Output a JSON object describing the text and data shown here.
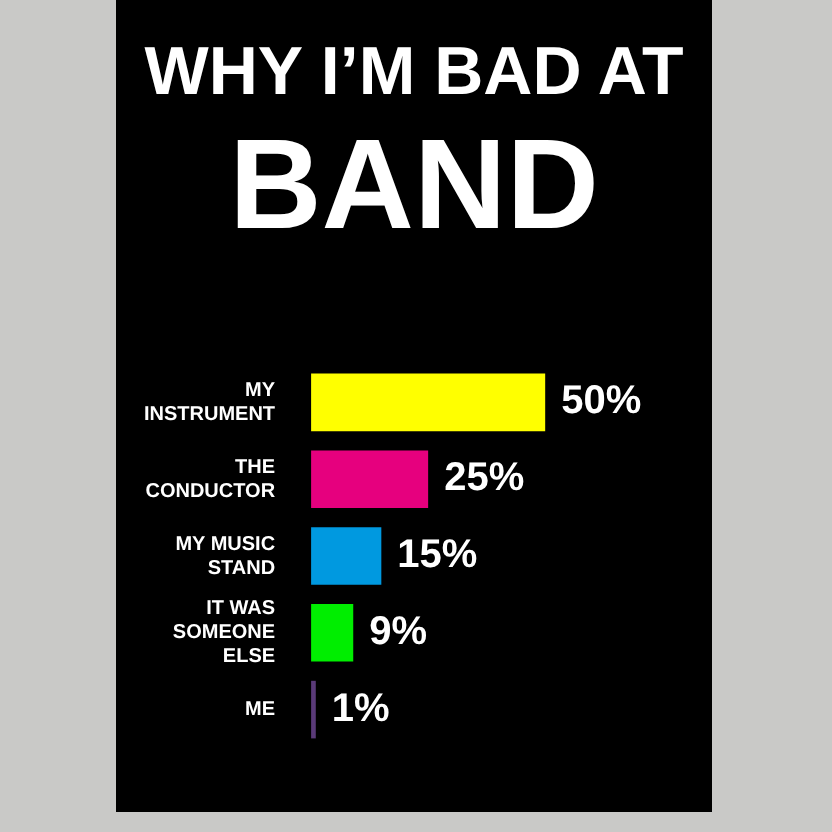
{
  "chart_data": {
    "type": "bar",
    "orientation": "horizontal",
    "title": "WHY I’M BAD AT BAND",
    "categories": [
      "MY INSTRUMENT",
      "THE CONDUCTOR",
      "MY MUSIC STAND",
      "IT WAS SOMEONE ELSE",
      "ME"
    ],
    "values": [
      50,
      25,
      15,
      9,
      1
    ],
    "colors": [
      "#ffff00",
      "#e6007e",
      "#0099e0",
      "#00ee00",
      "#5a3a78"
    ],
    "value_labels": [
      "50%",
      "25%",
      "15%",
      "9%",
      "1%"
    ],
    "legend": false
  }
}
